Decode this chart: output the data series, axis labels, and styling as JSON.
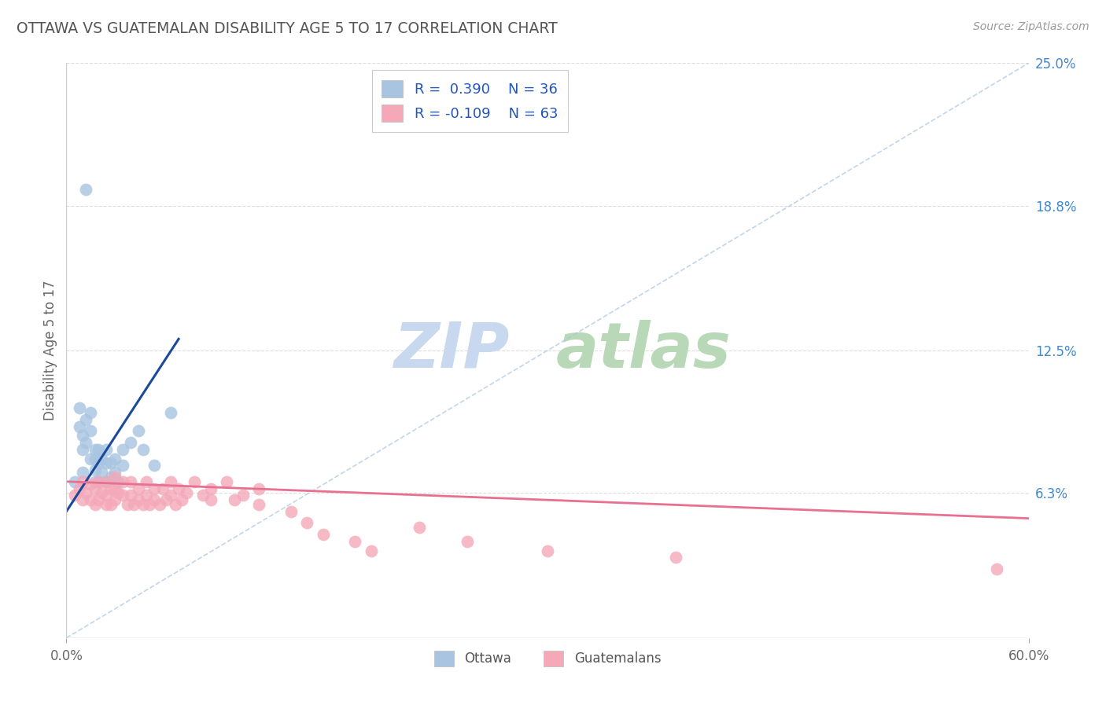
{
  "title": "OTTAWA VS GUATEMALAN DISABILITY AGE 5 TO 17 CORRELATION CHART",
  "source": "Source: ZipAtlas.com",
  "ylabel": "Disability Age 5 to 17",
  "xlim": [
    0.0,
    0.6
  ],
  "ylim": [
    0.0,
    0.25
  ],
  "ytick_labels": [
    "6.3%",
    "12.5%",
    "18.8%",
    "25.0%"
  ],
  "ytick_values": [
    0.063,
    0.125,
    0.188,
    0.25
  ],
  "ottawa_R": 0.39,
  "ottawa_N": 36,
  "guatemalan_R": -0.109,
  "guatemalan_N": 63,
  "ottawa_color": "#a8c4e0",
  "guatemalan_color": "#f4a8b8",
  "ottawa_line_color": "#1a4a9a",
  "guatemalan_line_color": "#e87090",
  "dashed_line_color": "#a8c4e0",
  "watermark_zip_color": "#c8d8ee",
  "watermark_atlas_color": "#b8d8b8",
  "ottawa_scatter_x": [
    0.005,
    0.008,
    0.008,
    0.01,
    0.01,
    0.01,
    0.012,
    0.012,
    0.015,
    0.015,
    0.015,
    0.018,
    0.018,
    0.018,
    0.018,
    0.02,
    0.02,
    0.02,
    0.022,
    0.022,
    0.025,
    0.025,
    0.025,
    0.028,
    0.028,
    0.03,
    0.03,
    0.032,
    0.035,
    0.035,
    0.04,
    0.045,
    0.048,
    0.055,
    0.065,
    0.012
  ],
  "ottawa_scatter_y": [
    0.068,
    0.1,
    0.092,
    0.088,
    0.082,
    0.072,
    0.095,
    0.085,
    0.098,
    0.09,
    0.078,
    0.082,
    0.078,
    0.073,
    0.068,
    0.082,
    0.076,
    0.068,
    0.078,
    0.072,
    0.082,
    0.076,
    0.068,
    0.076,
    0.07,
    0.078,
    0.072,
    0.068,
    0.082,
    0.075,
    0.085,
    0.09,
    0.082,
    0.075,
    0.098,
    0.195
  ],
  "guatemalan_scatter_x": [
    0.005,
    0.008,
    0.01,
    0.01,
    0.012,
    0.015,
    0.015,
    0.018,
    0.018,
    0.02,
    0.02,
    0.022,
    0.025,
    0.025,
    0.025,
    0.028,
    0.028,
    0.03,
    0.03,
    0.03,
    0.032,
    0.035,
    0.035,
    0.038,
    0.04,
    0.04,
    0.042,
    0.045,
    0.045,
    0.048,
    0.05,
    0.05,
    0.052,
    0.055,
    0.055,
    0.058,
    0.06,
    0.062,
    0.065,
    0.065,
    0.068,
    0.07,
    0.072,
    0.075,
    0.08,
    0.085,
    0.09,
    0.09,
    0.1,
    0.105,
    0.11,
    0.12,
    0.12,
    0.14,
    0.15,
    0.16,
    0.18,
    0.19,
    0.22,
    0.25,
    0.3,
    0.38,
    0.58
  ],
  "guatemalan_scatter_y": [
    0.062,
    0.065,
    0.068,
    0.06,
    0.063,
    0.067,
    0.06,
    0.065,
    0.058,
    0.068,
    0.06,
    0.063,
    0.068,
    0.062,
    0.058,
    0.065,
    0.058,
    0.07,
    0.065,
    0.06,
    0.063,
    0.068,
    0.062,
    0.058,
    0.068,
    0.062,
    0.058,
    0.065,
    0.06,
    0.058,
    0.068,
    0.062,
    0.058,
    0.065,
    0.06,
    0.058,
    0.065,
    0.06,
    0.068,
    0.062,
    0.058,
    0.065,
    0.06,
    0.063,
    0.068,
    0.062,
    0.065,
    0.06,
    0.068,
    0.06,
    0.062,
    0.065,
    0.058,
    0.055,
    0.05,
    0.045,
    0.042,
    0.038,
    0.048,
    0.042,
    0.038,
    0.035,
    0.03
  ],
  "ottawa_line_x": [
    0.0,
    0.07
  ],
  "ottawa_line_y": [
    0.055,
    0.13
  ],
  "guatemalan_line_x": [
    0.0,
    0.6
  ],
  "guatemalan_line_y": [
    0.068,
    0.052
  ],
  "dashed_line_x": [
    0.0,
    0.6
  ],
  "dashed_line_y": [
    0.0,
    0.25
  ]
}
